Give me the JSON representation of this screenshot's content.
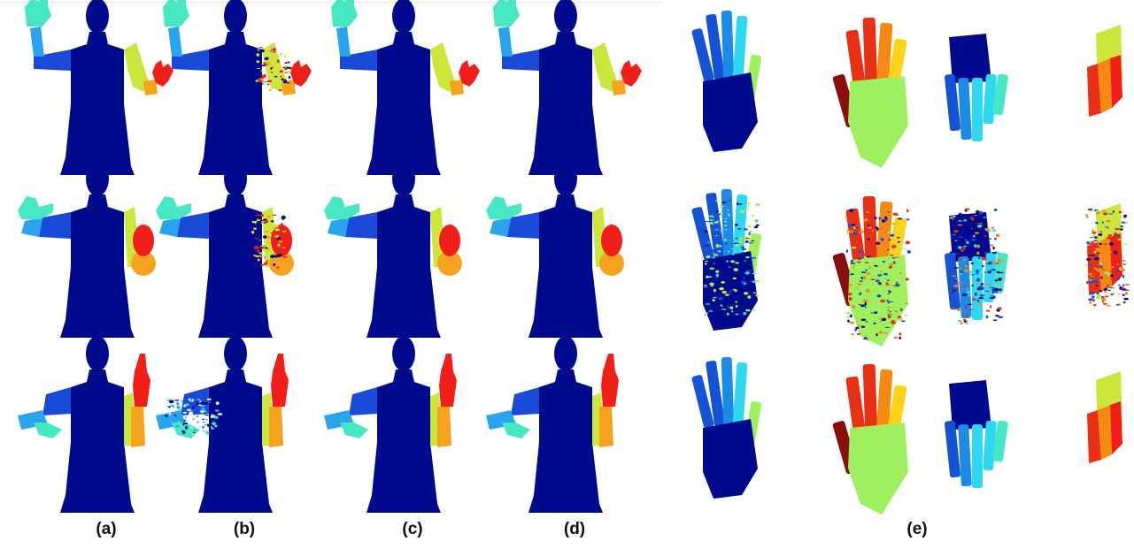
{
  "figure": {
    "column_labels": [
      "(a)",
      "(b)",
      "(c)",
      "(d)",
      "(e)"
    ]
  },
  "colors": {
    "torso": "#000a8c",
    "upper_arm_left": "#1a4bd8",
    "forearm_left": "#2aa4ec",
    "hand_left": "#46e8c4",
    "upper_arm_right": "#cce63c",
    "forearm_right": "#f5a21e",
    "hand_right": "#f01f1a",
    "hand_palm_green": "#9ef05e",
    "thumb_darkred": "#8a0e0e",
    "finger_red": "#e83016",
    "finger_orange": "#f58a12",
    "finger_yellow": "#ffd21a",
    "finger_cyan": "#2fd8f0",
    "finger_blue": "#1452d6",
    "finger_mid_blue": "#1e8ae8"
  }
}
